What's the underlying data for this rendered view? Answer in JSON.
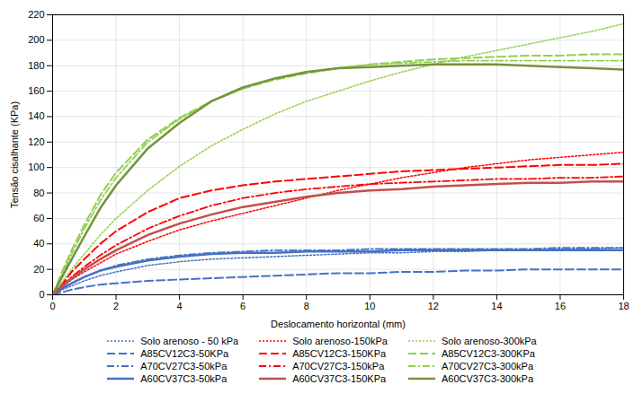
{
  "chart_data": {
    "type": "line",
    "xlabel": "Deslocamento horizontal (mm)",
    "ylabel": "Tensão cisalhante (KPa)",
    "xlim": [
      0,
      18
    ],
    "ylim": [
      0,
      220
    ],
    "xticks": [
      0,
      2,
      4,
      6,
      8,
      10,
      12,
      14,
      16,
      18
    ],
    "yticks": [
      0,
      20,
      40,
      60,
      80,
      100,
      120,
      140,
      160,
      180,
      200,
      220
    ],
    "grid": true,
    "legend": "bottom",
    "x": [
      0,
      0.3,
      0.6,
      1.0,
      1.5,
      2.0,
      3.0,
      4.0,
      5.0,
      6.0,
      7.0,
      8.0,
      9.0,
      10.0,
      11.0,
      12.0,
      13.0,
      14.0,
      15.0,
      16.0,
      17.0,
      18.0
    ],
    "series": [
      {
        "name": "Solo arenoso - 50 kPa",
        "color": "#4472C4",
        "line_style": "dotted",
        "values": [
          0,
          4,
          7,
          11,
          15,
          18,
          23,
          26,
          28,
          29,
          30,
          31,
          32,
          33,
          33,
          34,
          34,
          35,
          35,
          36,
          36,
          37
        ]
      },
      {
        "name": "Solo arenoso-150kPa",
        "color": "#FF0000",
        "line_style": "dotted",
        "values": [
          0,
          6,
          12,
          18,
          25,
          32,
          42,
          51,
          58,
          64,
          70,
          76,
          82,
          87,
          92,
          96,
          100,
          103,
          106,
          108,
          110,
          112
        ]
      },
      {
        "name": "Solo arenoso-300kPa",
        "color": "#92D050",
        "line_style": "dotted",
        "values": [
          0,
          10,
          20,
          32,
          47,
          60,
          82,
          101,
          117,
          130,
          142,
          152,
          160,
          168,
          175,
          181,
          187,
          192,
          197,
          202,
          207,
          213
        ]
      },
      {
        "name": "A85CV12C3-50KPa",
        "color": "#4472C4",
        "line_style": "dashed",
        "values": [
          0,
          2,
          4,
          6,
          8,
          9,
          11,
          12,
          13,
          14,
          15,
          16,
          17,
          17,
          18,
          18,
          19,
          19,
          20,
          20,
          20,
          20
        ]
      },
      {
        "name": "A85CV12C3-150KPa",
        "color": "#FF0000",
        "line_style": "dashed",
        "values": [
          0,
          8,
          18,
          28,
          40,
          50,
          65,
          76,
          82,
          86,
          89,
          91,
          93,
          95,
          97,
          98,
          99,
          100,
          101,
          102,
          102,
          103
        ]
      },
      {
        "name": "A85CV12C3-300KPa",
        "color": "#92D050",
        "line_style": "dashed",
        "values": [
          0,
          18,
          35,
          55,
          78,
          96,
          122,
          139,
          152,
          162,
          169,
          174,
          178,
          181,
          183,
          185,
          186,
          187,
          188,
          188,
          189,
          189
        ]
      },
      {
        "name": "A70CV27C3-50kPa",
        "color": "#4472C4",
        "line_style": "dashdot",
        "values": [
          0,
          5,
          9,
          14,
          19,
          23,
          28,
          31,
          33,
          34,
          35,
          35,
          35,
          36,
          36,
          36,
          36,
          36,
          36,
          37,
          37,
          37
        ]
      },
      {
        "name": "A70CV27C3-150kPa",
        "color": "#FF0000",
        "line_style": "dashdot",
        "values": [
          0,
          7,
          14,
          22,
          31,
          39,
          52,
          62,
          70,
          76,
          80,
          83,
          85,
          87,
          88,
          89,
          90,
          91,
          91,
          92,
          92,
          93
        ]
      },
      {
        "name": "A70CV27C3-300kPa",
        "color": "#92D050",
        "line_style": "dashdot",
        "values": [
          0,
          16,
          32,
          52,
          74,
          92,
          120,
          138,
          152,
          162,
          170,
          175,
          178,
          181,
          182,
          183,
          184,
          184,
          184,
          184,
          184,
          184
        ]
      },
      {
        "name": "A60CV37C3-50kPa",
        "color": "#4472C4",
        "line_style": "solid",
        "values": [
          0,
          5,
          9,
          14,
          19,
          22,
          27,
          30,
          32,
          33,
          33,
          34,
          34,
          34,
          35,
          35,
          35,
          35,
          35,
          35,
          35,
          35
        ]
      },
      {
        "name": "A60CV37C3-150KPa",
        "color": "#C0504D",
        "line_style": "solid",
        "values": [
          0,
          7,
          13,
          20,
          28,
          35,
          47,
          56,
          63,
          69,
          73,
          77,
          80,
          82,
          83,
          85,
          86,
          87,
          88,
          88,
          89,
          89
        ]
      },
      {
        "name": "A60CV37C3-300kPa",
        "color": "#76923C",
        "line_style": "solid",
        "values": [
          0,
          14,
          28,
          46,
          68,
          86,
          115,
          135,
          152,
          163,
          170,
          175,
          178,
          179,
          180,
          181,
          181,
          181,
          180,
          179,
          178,
          177
        ]
      }
    ]
  }
}
